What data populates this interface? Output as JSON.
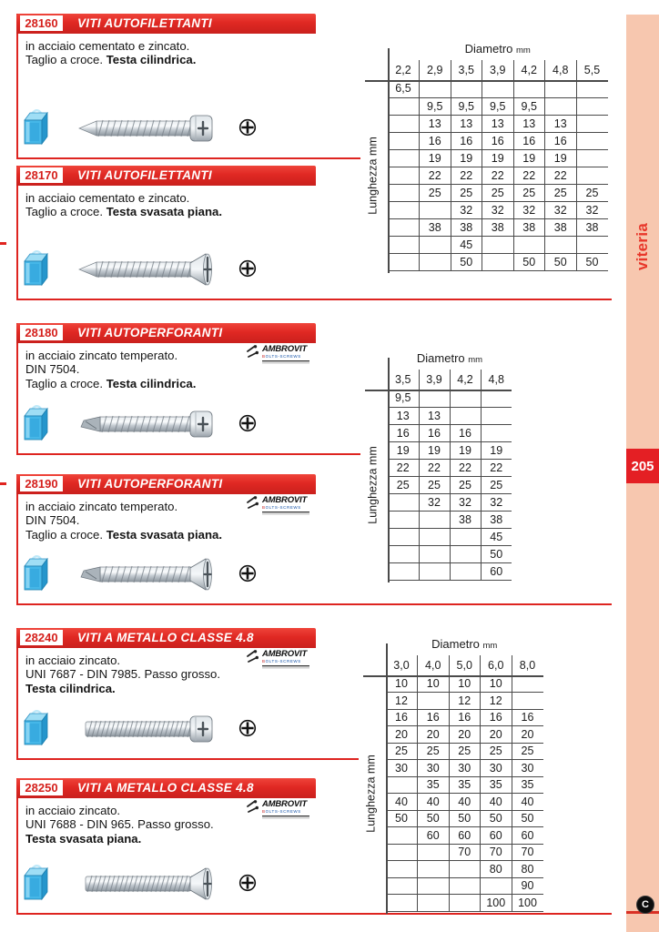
{
  "page": {
    "side_tab": "viteria",
    "page_number": "205",
    "bottom_logo": "C"
  },
  "brand": {
    "name": "AMBROVIT",
    "sub": "BOLTS-SCREWS"
  },
  "sections": [
    {
      "code": "28160",
      "title": "VITI AUTOFILETTANTI",
      "desc": [
        [
          {
            "t": "in acciaio cementato e zincato.",
            "b": false
          }
        ],
        [
          {
            "t": "Taglio a croce. ",
            "b": false
          },
          {
            "t": "Testa cilindrica.",
            "b": true
          }
        ]
      ],
      "brand_logo": false,
      "screw": "tap-pan"
    },
    {
      "code": "28170",
      "title": "VITI AUTOFILETTANTI",
      "desc": [
        [
          {
            "t": "in acciaio cementato e zincato.",
            "b": false
          }
        ],
        [
          {
            "t": "Taglio a croce. ",
            "b": false
          },
          {
            "t": "Testa svasata piana.",
            "b": true
          }
        ]
      ],
      "brand_logo": false,
      "screw": "tap-csk"
    },
    {
      "code": "28180",
      "title": "VITI AUTOPERFORANTI",
      "desc": [
        [
          {
            "t": "in acciaio zincato temperato.",
            "b": false
          }
        ],
        [
          {
            "t": "DIN 7504.",
            "b": false
          }
        ],
        [
          {
            "t": "Taglio a croce. ",
            "b": false
          },
          {
            "t": "Testa cilindrica.",
            "b": true
          }
        ]
      ],
      "brand_logo": true,
      "screw": "drill-pan"
    },
    {
      "code": "28190",
      "title": "VITI AUTOPERFORANTI",
      "desc": [
        [
          {
            "t": "in acciaio zincato temperato.",
            "b": false
          }
        ],
        [
          {
            "t": "DIN 7504.",
            "b": false
          }
        ],
        [
          {
            "t": "Taglio a croce. ",
            "b": false
          },
          {
            "t": "Testa svasata piana.",
            "b": true
          }
        ]
      ],
      "brand_logo": true,
      "screw": "drill-csk"
    },
    {
      "code": "28240",
      "title": "VITI A METALLO CLASSE 4.8",
      "desc": [
        [
          {
            "t": "in acciaio zincato.",
            "b": false
          }
        ],
        [
          {
            "t": "UNI 7687 - DIN 7985. Passo grosso.",
            "b": false
          }
        ],
        [
          {
            "t": "Testa cilindrica.",
            "b": true
          }
        ]
      ],
      "brand_logo": true,
      "screw": "machine-pan"
    },
    {
      "code": "28250",
      "title": "VITI A METALLO CLASSE 4.8",
      "desc": [
        [
          {
            "t": "in acciaio zincato.",
            "b": false
          }
        ],
        [
          {
            "t": "UNI 7688 - DIN 965. Passo grosso.",
            "b": false
          }
        ],
        [
          {
            "t": "Testa svasata piana.",
            "b": true
          }
        ]
      ],
      "brand_logo": true,
      "screw": "machine-csk"
    }
  ],
  "tables": [
    {
      "title": "Diametro",
      "title_unit": "mm",
      "row_label": "Lunghezza",
      "row_unit": "mm",
      "columns": [
        "2,2",
        "2,9",
        "3,5",
        "3,9",
        "4,2",
        "4,8",
        "5,5"
      ],
      "rows": [
        [
          "6,5",
          "",
          "",
          "",
          "",
          "",
          ""
        ],
        [
          "",
          "9,5",
          "9,5",
          "9,5",
          "9,5",
          "",
          ""
        ],
        [
          "",
          "13",
          "13",
          "13",
          "13",
          "13",
          ""
        ],
        [
          "",
          "16",
          "16",
          "16",
          "16",
          "16",
          ""
        ],
        [
          "",
          "19",
          "19",
          "19",
          "19",
          "19",
          ""
        ],
        [
          "",
          "22",
          "22",
          "22",
          "22",
          "22",
          ""
        ],
        [
          "",
          "25",
          "25",
          "25",
          "25",
          "25",
          "25"
        ],
        [
          "",
          "",
          "32",
          "32",
          "32",
          "32",
          "32"
        ],
        [
          "",
          "38",
          "38",
          "38",
          "38",
          "38",
          "38"
        ],
        [
          "",
          "",
          "45",
          "",
          "",
          "",
          ""
        ],
        [
          "",
          "",
          "50",
          "",
          "50",
          "50",
          "50"
        ]
      ]
    },
    {
      "title": "Diametro",
      "title_unit": "mm",
      "row_label": "Lunghezza",
      "row_unit": "mm",
      "columns": [
        "3,5",
        "3,9",
        "4,2",
        "4,8"
      ],
      "rows": [
        [
          "9,5",
          "",
          "",
          ""
        ],
        [
          "13",
          "13",
          "",
          ""
        ],
        [
          "16",
          "16",
          "16",
          ""
        ],
        [
          "19",
          "19",
          "19",
          "19"
        ],
        [
          "22",
          "22",
          "22",
          "22"
        ],
        [
          "25",
          "25",
          "25",
          "25"
        ],
        [
          "",
          "32",
          "32",
          "32"
        ],
        [
          "",
          "",
          "38",
          "38"
        ],
        [
          "",
          "",
          "",
          "45"
        ],
        [
          "",
          "",
          "",
          "50"
        ],
        [
          "",
          "",
          "",
          "60"
        ]
      ]
    },
    {
      "title": "Diametro",
      "title_unit": "mm",
      "row_label": "Lunghezza",
      "row_unit": "mm",
      "columns": [
        "3,0",
        "4,0",
        "5,0",
        "6,0",
        "8,0"
      ],
      "rows": [
        [
          "10",
          "10",
          "10",
          "10",
          ""
        ],
        [
          "12",
          "",
          "12",
          "12",
          ""
        ],
        [
          "16",
          "16",
          "16",
          "16",
          "16"
        ],
        [
          "20",
          "20",
          "20",
          "20",
          "20"
        ],
        [
          "25",
          "25",
          "25",
          "25",
          "25"
        ],
        [
          "30",
          "30",
          "30",
          "30",
          "30"
        ],
        [
          "",
          "35",
          "35",
          "35",
          "35"
        ],
        [
          "40",
          "40",
          "40",
          "40",
          "40"
        ],
        [
          "50",
          "50",
          "50",
          "50",
          "50"
        ],
        [
          "",
          "60",
          "60",
          "60",
          "60"
        ],
        [
          "",
          "",
          "70",
          "70",
          "70"
        ],
        [
          "",
          "",
          "",
          "80",
          "80"
        ],
        [
          "",
          "",
          "",
          "",
          "90"
        ],
        [
          "",
          "",
          "",
          "100",
          "100"
        ]
      ]
    }
  ]
}
